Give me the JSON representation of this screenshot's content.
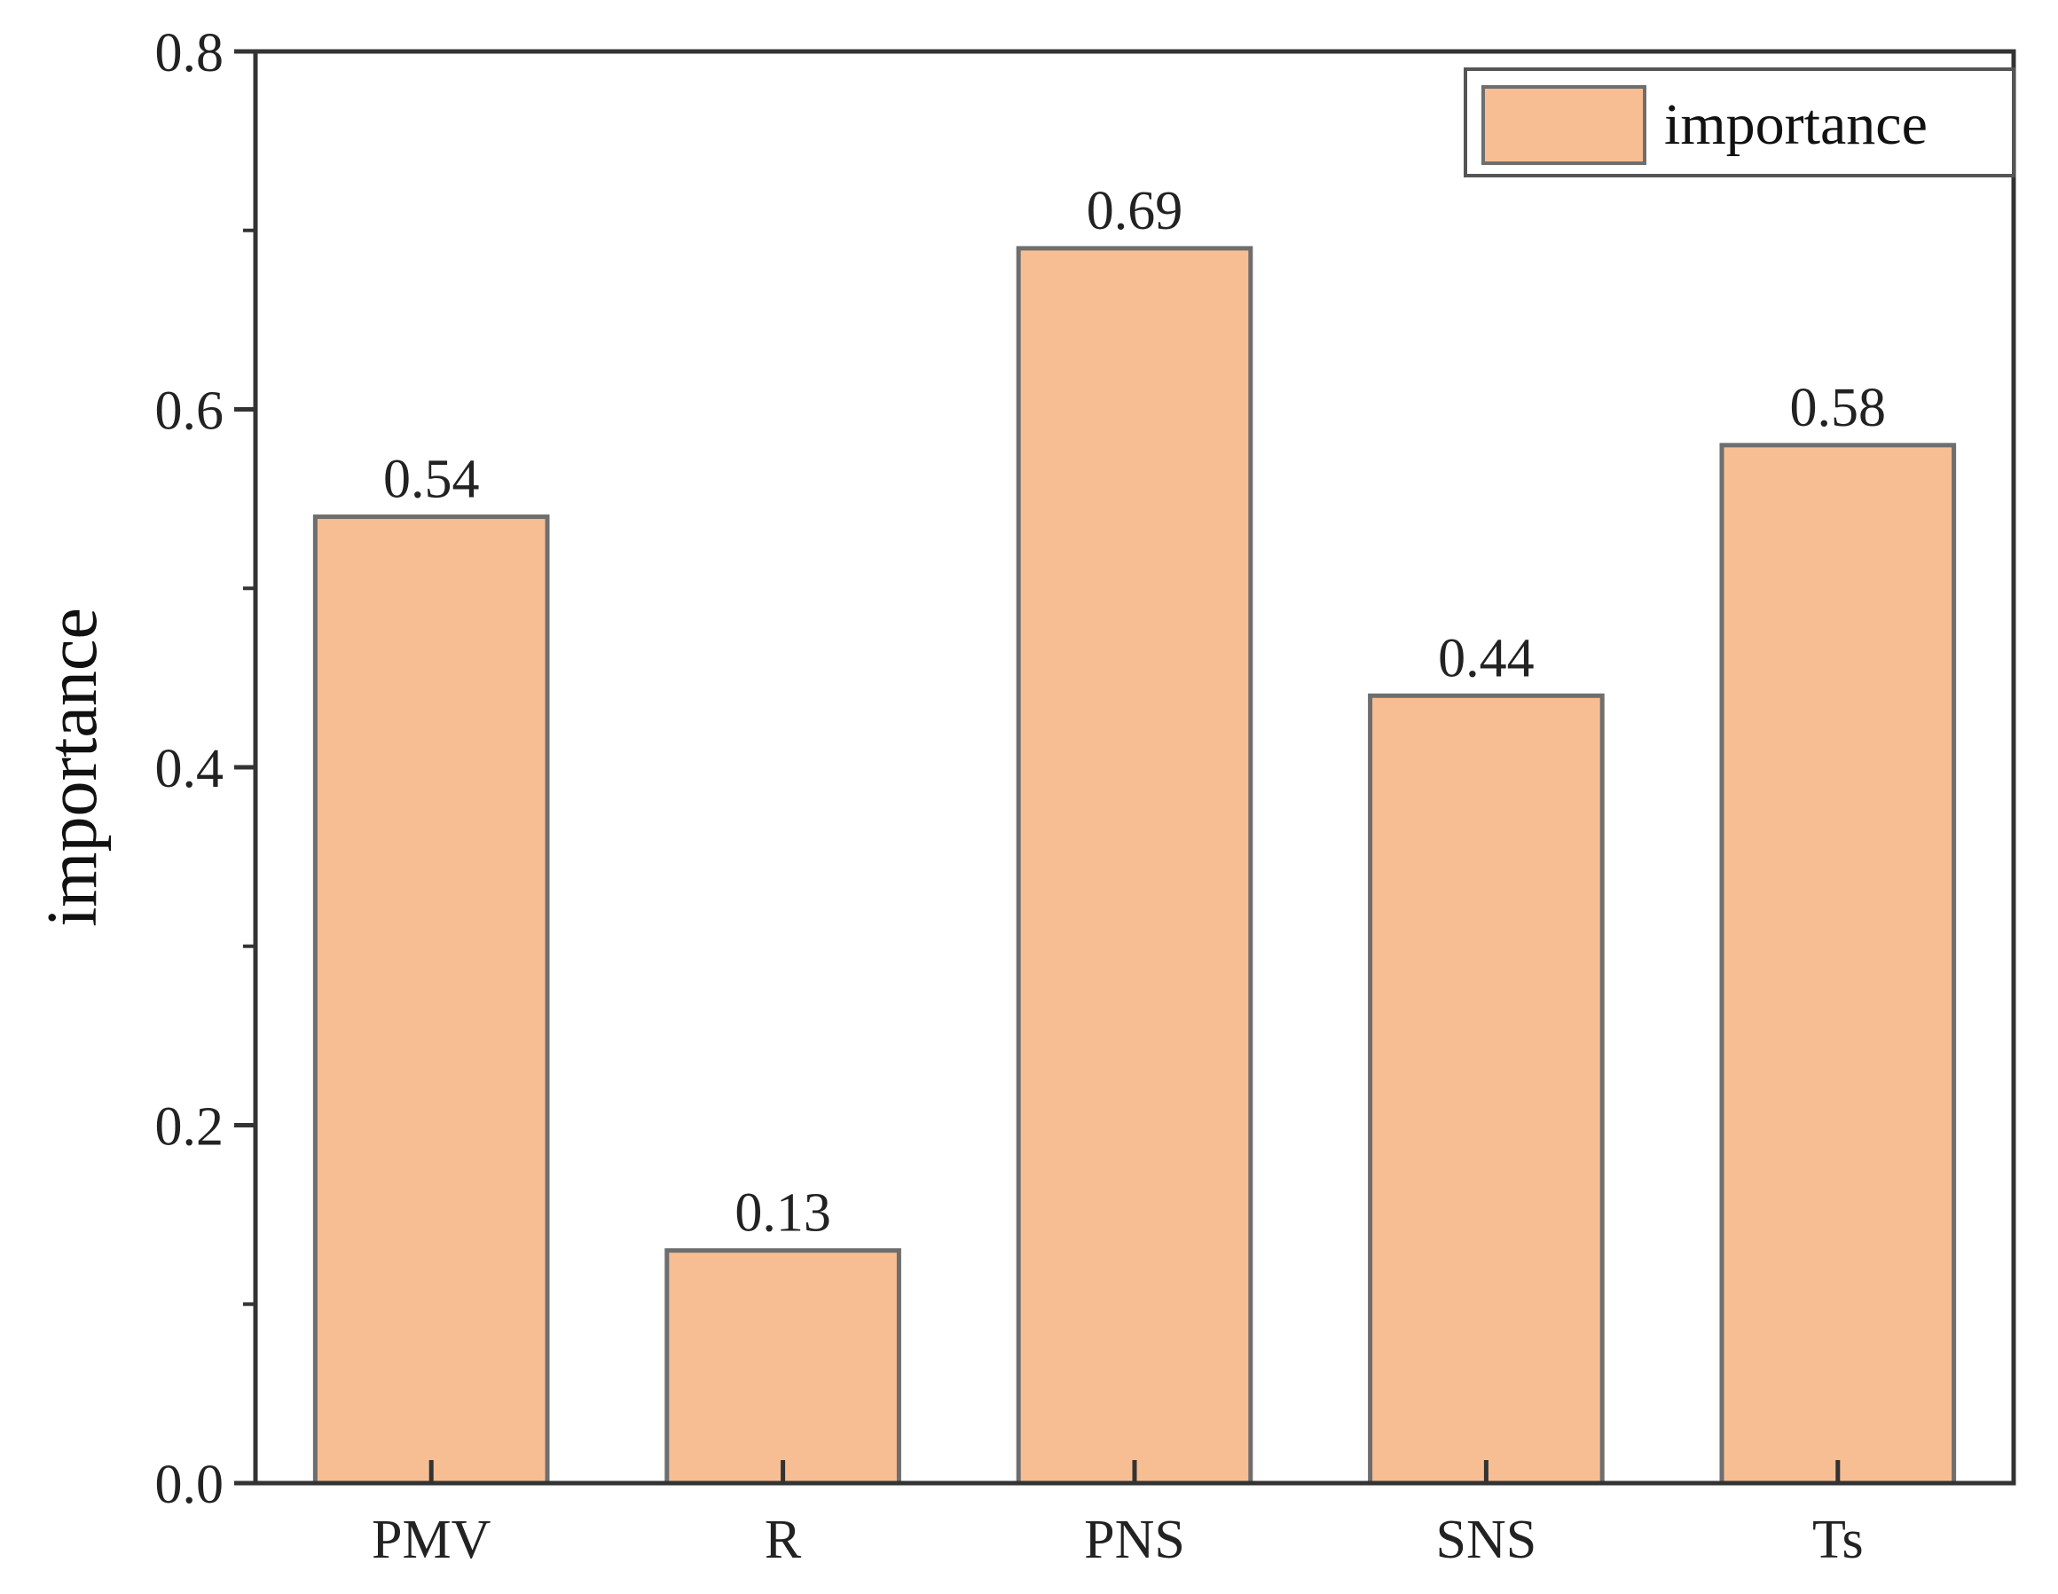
{
  "chart_data": {
    "type": "bar",
    "categories": [
      "PMV",
      "R",
      "PNS",
      "SNS",
      "Ts"
    ],
    "series": [
      {
        "name": "importance",
        "values": [
          0.54,
          0.13,
          0.69,
          0.44,
          0.58
        ],
        "color": "#F7BE94"
      }
    ],
    "data_labels": [
      "0.54",
      "0.13",
      "0.69",
      "0.44",
      "0.58"
    ],
    "title": "",
    "xlabel": "",
    "ylabel": "importance",
    "ylim": [
      0,
      0.8
    ],
    "yticks": [
      0.0,
      0.2,
      0.4,
      0.6,
      0.8
    ],
    "ytick_labels": [
      "0.0",
      "0.2",
      "0.4",
      "0.6",
      "0.8"
    ],
    "minor_ytick_step": 0.1,
    "legend": {
      "position": "top-right",
      "entries": [
        "importance"
      ]
    },
    "grid": false,
    "bar_edge_color": "#6E6E6E",
    "axis_color": "#333333"
  }
}
